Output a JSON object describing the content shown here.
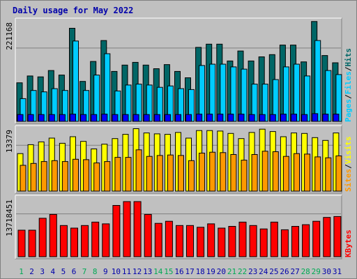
{
  "title": "Daily usage for May 2022",
  "colors": {
    "background": "#c0c0c0",
    "hits": "#006666",
    "files": "#00ccff",
    "pages": "#0000ff",
    "visits": "#ffff00",
    "sites": "#ff9900",
    "kbytes": "#ff0000",
    "weekend_day": "#00aa55",
    "weekday_day": "#0000aa"
  },
  "legend": {
    "top": [
      "Pages",
      "/",
      "Files",
      "/",
      "Hits"
    ],
    "middle": [
      "Sites",
      "/",
      "Visits"
    ],
    "bottom": [
      "KBytes"
    ]
  },
  "chart_data": [
    {
      "type": "bar",
      "panel": "hits-files-pages",
      "title": "Daily usage for May 2022",
      "ymax_label": "221168",
      "ylim": [
        0,
        221168
      ],
      "grid": true,
      "categories": [
        "1",
        "2",
        "3",
        "4",
        "5",
        "6",
        "7",
        "8",
        "9",
        "10",
        "11",
        "12",
        "13",
        "14",
        "15",
        "16",
        "17",
        "18",
        "19",
        "20",
        "21",
        "22",
        "23",
        "24",
        "25",
        "26",
        "27",
        "28",
        "29",
        "30",
        "31"
      ],
      "series": [
        {
          "name": "Hits",
          "values": [
            85000,
            100000,
            98000,
            112000,
            102000,
            205000,
            88000,
            132000,
            178000,
            110000,
            124000,
            130000,
            124000,
            116000,
            125000,
            110000,
            96000,
            163000,
            170000,
            170000,
            133000,
            155000,
            133000,
            142000,
            147000,
            168000,
            168000,
            131000,
            220000,
            145000,
            129000
          ]
        },
        {
          "name": "Files",
          "values": [
            50000,
            68000,
            65000,
            72000,
            68000,
            177000,
            68000,
            102000,
            149000,
            67000,
            80000,
            82000,
            80000,
            75000,
            78000,
            72000,
            70000,
            123000,
            126000,
            126000,
            120000,
            115000,
            82000,
            82000,
            92000,
            120000,
            126000,
            100000,
            178000,
            112000,
            103000
          ]
        },
        {
          "name": "Pages",
          "values": [
            15000,
            15000,
            15000,
            15000,
            15000,
            16000,
            15000,
            15000,
            16000,
            15000,
            15000,
            15000,
            15000,
            15000,
            15000,
            15000,
            15000,
            16000,
            16000,
            16000,
            16000,
            16000,
            15000,
            15000,
            15000,
            16000,
            16000,
            15000,
            17000,
            16000,
            16000
          ]
        }
      ]
    },
    {
      "type": "bar",
      "panel": "visits-sites",
      "ymax_label": "13379",
      "ylim": [
        0,
        13379
      ],
      "grid": true,
      "categories": [
        "1",
        "2",
        "3",
        "4",
        "5",
        "6",
        "7",
        "8",
        "9",
        "10",
        "11",
        "12",
        "13",
        "14",
        "15",
        "16",
        "17",
        "18",
        "19",
        "20",
        "21",
        "22",
        "23",
        "24",
        "25",
        "26",
        "27",
        "28",
        "29",
        "30",
        "31"
      ],
      "series": [
        {
          "name": "Visits",
          "values": [
            8000,
            9900,
            10500,
            11300,
            10200,
            11600,
            10600,
            9000,
            10000,
            11200,
            12100,
            13300,
            12400,
            12200,
            12100,
            12500,
            11300,
            12900,
            12900,
            12800,
            12300,
            11200,
            12500,
            13200,
            12700,
            11600,
            12400,
            12300,
            11400,
            10800,
            12400
          ]
        },
        {
          "name": "Sites",
          "values": [
            5500,
            5900,
            6300,
            6500,
            6300,
            6800,
            6700,
            6000,
            6300,
            7200,
            7200,
            8800,
            7400,
            7600,
            7700,
            7600,
            6500,
            8100,
            8300,
            8200,
            7800,
            6600,
            7800,
            8500,
            8400,
            7400,
            8000,
            7900,
            7300,
            7100,
            7500
          ]
        }
      ]
    },
    {
      "type": "bar",
      "panel": "kbytes",
      "ymax_label": "13718451",
      "ylim": [
        0,
        13718451
      ],
      "grid": true,
      "categories": [
        "1",
        "2",
        "3",
        "4",
        "5",
        "6",
        "7",
        "8",
        "9",
        "10",
        "11",
        "12",
        "13",
        "14",
        "15",
        "16",
        "17",
        "18",
        "19",
        "20",
        "21",
        "22",
        "23",
        "24",
        "25",
        "26",
        "27",
        "28",
        "29",
        "30",
        "31"
      ],
      "series": [
        {
          "name": "KBytes",
          "values": [
            6200000,
            6200000,
            9000000,
            9900000,
            7300000,
            6700000,
            7300000,
            8100000,
            7700000,
            12000000,
            12900000,
            12900000,
            9900000,
            7800000,
            8300000,
            7300000,
            7300000,
            6900000,
            7700000,
            6700000,
            7100000,
            8100000,
            7300000,
            6500000,
            8100000,
            6300000,
            7100000,
            7500000,
            8300000,
            9200000,
            9400000
          ]
        }
      ]
    }
  ]
}
